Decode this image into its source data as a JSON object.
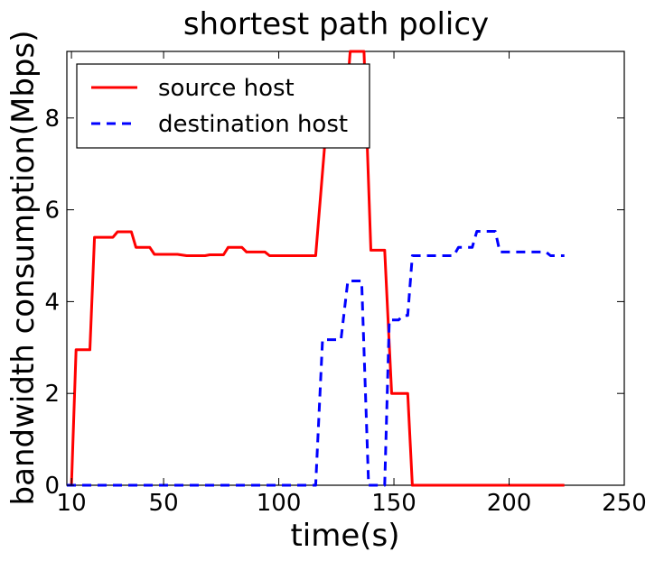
{
  "chart_data": {
    "type": "line",
    "title": "shortest path policy",
    "xlabel": "time(s)",
    "ylabel": "bandwidth consumption(Mbps)",
    "xlim": [
      8,
      250
    ],
    "ylim": [
      0,
      9.45
    ],
    "xticks": [
      10,
      50,
      100,
      150,
      200,
      250
    ],
    "xtick_labels": [
      "10",
      "50",
      "100",
      "150",
      "200",
      "250"
    ],
    "yticks": [
      0,
      2,
      4,
      6,
      8
    ],
    "ytick_labels": [
      "0",
      "2",
      "4",
      "6",
      "8"
    ],
    "grid": false,
    "legend_position": "top-left",
    "series": [
      {
        "name": "source host",
        "color": "#ff0000",
        "style": "solid",
        "points": [
          [
            8,
            0
          ],
          [
            10,
            0
          ],
          [
            12,
            2.95
          ],
          [
            18,
            2.95
          ],
          [
            20,
            5.4
          ],
          [
            28,
            5.4
          ],
          [
            30,
            5.52
          ],
          [
            36,
            5.52
          ],
          [
            38,
            5.18
          ],
          [
            44,
            5.18
          ],
          [
            46,
            5.03
          ],
          [
            56,
            5.03
          ],
          [
            60,
            5.0
          ],
          [
            68,
            5.0
          ],
          [
            70,
            5.02
          ],
          [
            76,
            5.02
          ],
          [
            78,
            5.18
          ],
          [
            84,
            5.18
          ],
          [
            86,
            5.08
          ],
          [
            94,
            5.08
          ],
          [
            96,
            5.0
          ],
          [
            116,
            5.0
          ],
          [
            120,
            7.45
          ],
          [
            128,
            7.45
          ],
          [
            131,
            9.45
          ],
          [
            137,
            9.45
          ],
          [
            140,
            5.12
          ],
          [
            146,
            5.12
          ],
          [
            149,
            2.0
          ],
          [
            156,
            2.0
          ],
          [
            158,
            0
          ],
          [
            224,
            0
          ]
        ]
      },
      {
        "name": "destination host",
        "color": "#0000ff",
        "style": "dashed",
        "points": [
          [
            8,
            0
          ],
          [
            116,
            0
          ],
          [
            119,
            3.17
          ],
          [
            127,
            3.17
          ],
          [
            130,
            4.45
          ],
          [
            134,
            4.45
          ],
          [
            136,
            4.45
          ],
          [
            139,
            0
          ],
          [
            146,
            0
          ],
          [
            148,
            3.6
          ],
          [
            152,
            3.6
          ],
          [
            154,
            3.7
          ],
          [
            156,
            3.7
          ],
          [
            158,
            5.0
          ],
          [
            176,
            5.0
          ],
          [
            178,
            5.18
          ],
          [
            184,
            5.18
          ],
          [
            186,
            5.53
          ],
          [
            194,
            5.53
          ],
          [
            196,
            5.08
          ],
          [
            208,
            5.08
          ],
          [
            212,
            5.08
          ],
          [
            216,
            5.08
          ],
          [
            218,
            5.0
          ],
          [
            224,
            5.0
          ]
        ]
      }
    ]
  }
}
